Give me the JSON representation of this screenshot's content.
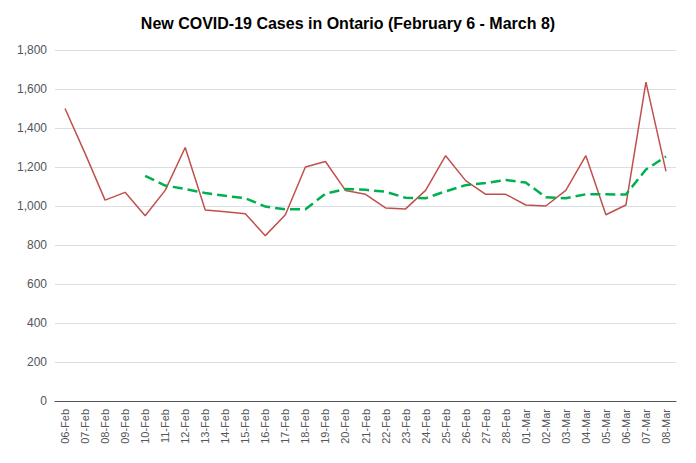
{
  "chart_data": {
    "type": "line",
    "title": "New COVID-19 Cases in Ontario (February 6 - March 8)",
    "categories": [
      "06-Feb",
      "07-Feb",
      "08-Feb",
      "09-Feb",
      "10-Feb",
      "11-Feb",
      "12-Feb",
      "13-Feb",
      "14-Feb",
      "15-Feb",
      "16-Feb",
      "17-Feb",
      "18-Feb",
      "19-Feb",
      "20-Feb",
      "21-Feb",
      "22-Feb",
      "23-Feb",
      "24-Feb",
      "25-Feb",
      "26-Feb",
      "27-Feb",
      "28-Feb",
      "01-Mar",
      "02-Mar",
      "03-Mar",
      "04-Mar",
      "05-Mar",
      "06-Mar",
      "07-Mar",
      "08-Mar"
    ],
    "series": [
      {
        "color": "#c0504d",
        "line_style": "solid",
        "values": [
          1500,
          1270,
          1030,
          1070,
          950,
          1080,
          1300,
          980,
          970,
          960,
          848,
          955,
          1200,
          1228,
          1080,
          1060,
          990,
          985,
          1080,
          1258,
          1130,
          1060,
          1060,
          1005,
          1000,
          1080,
          1258,
          955,
          1005,
          1635,
          1178
        ]
      },
      {
        "color": "#00b050",
        "line_style": "dashed",
        "values": [
          null,
          null,
          null,
          null,
          1155,
          1105,
          1087,
          1067,
          1052,
          1040,
          997,
          983,
          983,
          1063,
          1087,
          1083,
          1073,
          1042,
          1040,
          1075,
          1107,
          1118,
          1133,
          1120,
          1045,
          1040,
          1060,
          1060,
          1059,
          1187,
          1254
        ]
      }
    ],
    "ylim": [
      0,
      1800
    ],
    "yticks": [
      0,
      200,
      400,
      600,
      800,
      {
        "value": 1000,
        "label": "1,000"
      },
      {
        "value": 1200,
        "label": "1,200"
      },
      {
        "value": 1400,
        "label": "1,400"
      },
      {
        "value": 1600,
        "label": "1,600"
      },
      {
        "value": 1800,
        "label": "1,800"
      }
    ],
    "grid": true
  }
}
